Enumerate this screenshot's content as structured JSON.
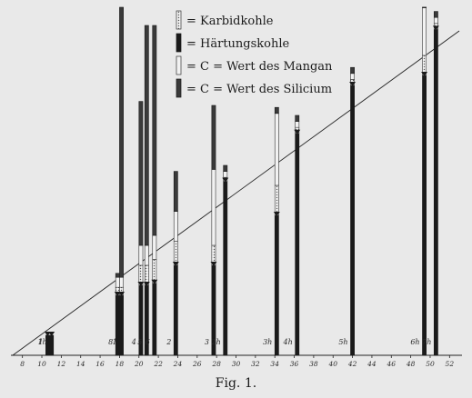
{
  "legend": [
    {
      "key": "karbid",
      "text": "= Karbidkohle"
    },
    {
      "key": "haertung",
      "text": "= Härtungskohle"
    },
    {
      "key": "mangan",
      "text": "= C = Wert des Mangan"
    },
    {
      "key": "silicium",
      "text": "= C = Wert des Silicium"
    }
  ],
  "caption": "Fig. 1.",
  "chart_data": {
    "type": "bar",
    "title": "",
    "xlabel": "",
    "ylabel": "",
    "xlim": [
      7,
      53
    ],
    "x_ticks": [
      8,
      10,
      12,
      14,
      16,
      18,
      20,
      22,
      24,
      26,
      28,
      30,
      32,
      34,
      36,
      38,
      40,
      42,
      44,
      46,
      48,
      50,
      52
    ],
    "diagonal_reference_line": {
      "x_start": 7,
      "x_end": 53
    },
    "stack_order_bottom_to_top": [
      "Härtungskohle",
      "Karbidkohle",
      "C = Wert des Mangan",
      "C = Wert des Silicium"
    ],
    "bars": [
      {
        "label": "1",
        "x": 10.6,
        "values": [
          1,
          0,
          0,
          0
        ]
      },
      {
        "label": "1h",
        "x": 11.0,
        "values": [
          1,
          0,
          0,
          0
        ]
      },
      {
        "label": "8",
        "x": 17.8,
        "values": [
          3,
          0.4,
          0.5,
          0.2
        ]
      },
      {
        "label": "1",
        "x": 18.2,
        "values": [
          3,
          0.4,
          0.5,
          16.5
        ]
      },
      {
        "label": "4",
        "x": 20.2,
        "values": [
          3.5,
          1.0,
          1.0,
          7.2
        ]
      },
      {
        "label": "5",
        "x": 20.8,
        "values": [
          3.5,
          1.0,
          1.0,
          11.0
        ]
      },
      {
        "label": "6",
        "x": 21.6,
        "values": [
          3.6,
          1.2,
          1.2,
          10.5
        ]
      },
      {
        "label": "2",
        "x": 23.8,
        "values": [
          4.5,
          1.2,
          1.5,
          2.0
        ]
      },
      {
        "label": "3",
        "x": 27.7,
        "values": [
          4.5,
          1.0,
          3.8,
          3.2
        ]
      },
      {
        "label": "2h",
        "x": 28.9,
        "values": [
          8.7,
          0.2,
          0.3,
          0.3
        ]
      },
      {
        "label": "3h",
        "x": 34.2,
        "values": [
          7.0,
          1.5,
          3.6,
          0.3
        ]
      },
      {
        "label": "4h",
        "x": 36.3,
        "values": [
          11.1,
          0.3,
          0.3,
          0.3
        ]
      },
      {
        "label": "5h",
        "x": 42.0,
        "values": [
          13.5,
          0.3,
          0.3,
          0.3
        ]
      },
      {
        "label": "6h",
        "x": 49.4,
        "values": [
          14.0,
          1.0,
          3.3,
          0.3
        ]
      },
      {
        "label": "7h",
        "x": 50.6,
        "values": [
          16.3,
          0.3,
          0.3,
          0.3
        ]
      }
    ]
  }
}
